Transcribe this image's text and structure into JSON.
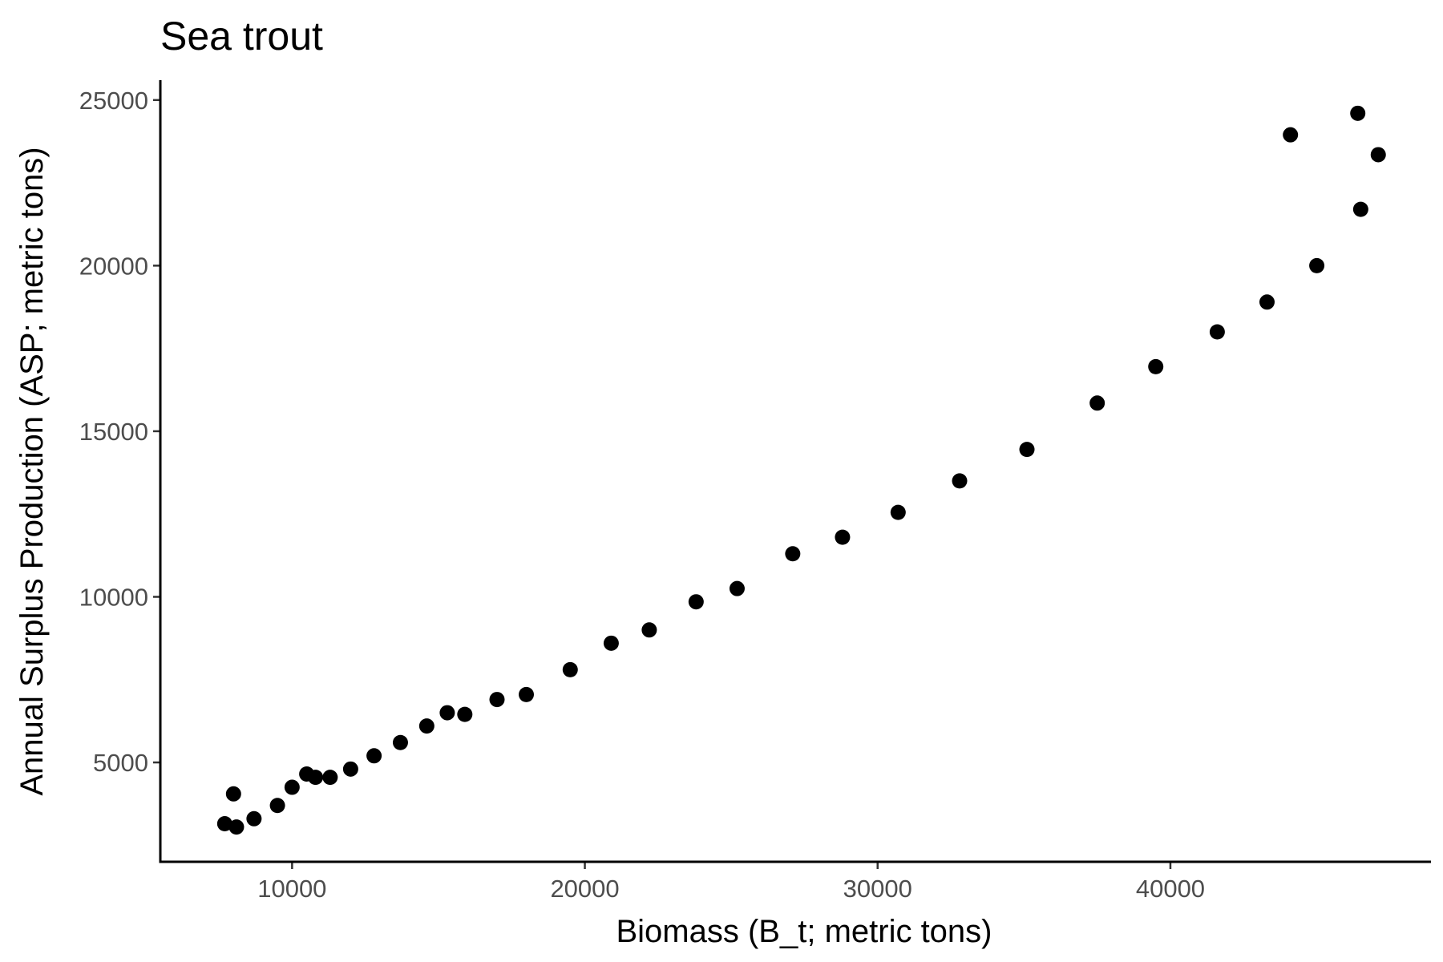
{
  "chart_data": {
    "type": "scatter",
    "title": "Sea trout",
    "xlabel": "Biomass (B_t; metric tons)",
    "ylabel": "Annual Surplus Production (ASP; metric tons)",
    "xlim": [
      5500,
      48900
    ],
    "ylim": [
      2000,
      25600
    ],
    "x_ticks": [
      10000,
      20000,
      30000,
      40000
    ],
    "y_ticks": [
      5000,
      10000,
      15000,
      20000,
      25000
    ],
    "x_tick_labels": [
      "10000",
      "20000",
      "30000",
      "40000"
    ],
    "y_tick_labels": [
      "5000",
      "10000",
      "15000",
      "20000",
      "25000"
    ],
    "grid": false,
    "legend": "none",
    "point_color": "#000000",
    "points": [
      {
        "x": 7700,
        "y": 3150
      },
      {
        "x": 8100,
        "y": 3050
      },
      {
        "x": 8000,
        "y": 4050
      },
      {
        "x": 8700,
        "y": 3300
      },
      {
        "x": 9500,
        "y": 3700
      },
      {
        "x": 10000,
        "y": 4250
      },
      {
        "x": 10500,
        "y": 4650
      },
      {
        "x": 10800,
        "y": 4550
      },
      {
        "x": 11300,
        "y": 4550
      },
      {
        "x": 12000,
        "y": 4800
      },
      {
        "x": 12800,
        "y": 5200
      },
      {
        "x": 13700,
        "y": 5600
      },
      {
        "x": 14600,
        "y": 6100
      },
      {
        "x": 15300,
        "y": 6500
      },
      {
        "x": 15900,
        "y": 6450
      },
      {
        "x": 17000,
        "y": 6900
      },
      {
        "x": 18000,
        "y": 7050
      },
      {
        "x": 19500,
        "y": 7800
      },
      {
        "x": 20900,
        "y": 8600
      },
      {
        "x": 22200,
        "y": 9000
      },
      {
        "x": 23800,
        "y": 9850
      },
      {
        "x": 25200,
        "y": 10250
      },
      {
        "x": 27100,
        "y": 11300
      },
      {
        "x": 28800,
        "y": 11800
      },
      {
        "x": 30700,
        "y": 12550
      },
      {
        "x": 32800,
        "y": 13500
      },
      {
        "x": 35100,
        "y": 14450
      },
      {
        "x": 37500,
        "y": 15850
      },
      {
        "x": 39500,
        "y": 16950
      },
      {
        "x": 41600,
        "y": 18000
      },
      {
        "x": 43300,
        "y": 18900
      },
      {
        "x": 44100,
        "y": 23950
      },
      {
        "x": 45000,
        "y": 20000
      },
      {
        "x": 46400,
        "y": 24600
      },
      {
        "x": 46500,
        "y": 21700
      },
      {
        "x": 47100,
        "y": 23350
      }
    ]
  }
}
